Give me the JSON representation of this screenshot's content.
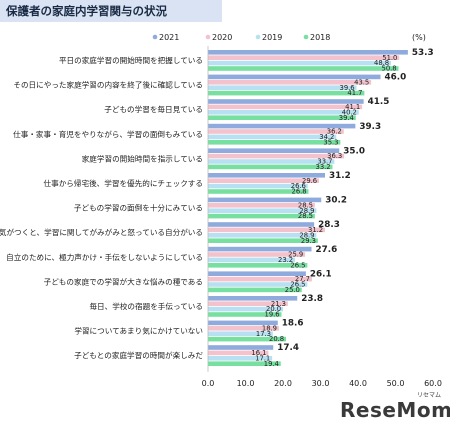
{
  "page_title": "保護者の家庭内学習関与の状況",
  "unit_label": "(%)",
  "logo_text": "ReseMom",
  "logo_sub": "リセマム",
  "colors": {
    "2021": "#8faadc",
    "2020": "#f4c2cc",
    "2019": "#b7e1f2",
    "2018": "#77e0a0"
  },
  "chart_data": {
    "type": "bar",
    "orientation": "horizontal",
    "title": "保護者の家庭内学習関与の状況",
    "xlim": [
      0,
      60
    ],
    "xticks": [
      "0.0",
      "10.0",
      "20.0",
      "30.0",
      "40.0",
      "50.0",
      "60.0"
    ],
    "grid": false,
    "legend_position": "top-center",
    "categories": [
      "平日の家庭学習の開始時間を把握している",
      "その日にやった家庭学習の内容を終了後に確認している",
      "子どもの学習を毎日見ている",
      "仕事・家事・育児をやりながら、学習の面倒もみている",
      "家庭学習の開始時間を指示している",
      "仕事から帰宅後、学習を優先的にチェックする",
      "子どもの学習の面倒を十分にみている",
      "気がつくと、学習に関してがみがみと怒っている自分がいる",
      "自立のために、極力声かけ・手伝をしないようにしている",
      "子どもの家庭での学習が大きな悩みの種である",
      "毎日、学校の宿題を手伝っている",
      "学習についてあまり気にかけていない",
      "子どもとの家庭学習の時間が楽しみだ"
    ],
    "series": [
      {
        "name": "2021",
        "values": [
          53.3,
          46.0,
          41.5,
          39.3,
          35.0,
          31.2,
          30.2,
          28.3,
          27.6,
          26.1,
          23.8,
          18.6,
          17.4
        ]
      },
      {
        "name": "2020",
        "values": [
          51.0,
          43.5,
          41.1,
          36.2,
          36.3,
          29.6,
          28.5,
          31.2,
          25.9,
          27.7,
          21.3,
          18.9,
          16.1
        ]
      },
      {
        "name": "2019",
        "values": [
          48.8,
          39.6,
          40.2,
          34.2,
          33.7,
          26.6,
          28.9,
          28.9,
          23.2,
          26.5,
          20.0,
          17.3,
          17.1
        ]
      },
      {
        "name": "2018",
        "values": [
          50.8,
          41.7,
          39.4,
          35.3,
          33.2,
          26.8,
          28.5,
          29.3,
          26.5,
          25.0,
          19.6,
          20.8,
          19.4
        ]
      }
    ]
  }
}
